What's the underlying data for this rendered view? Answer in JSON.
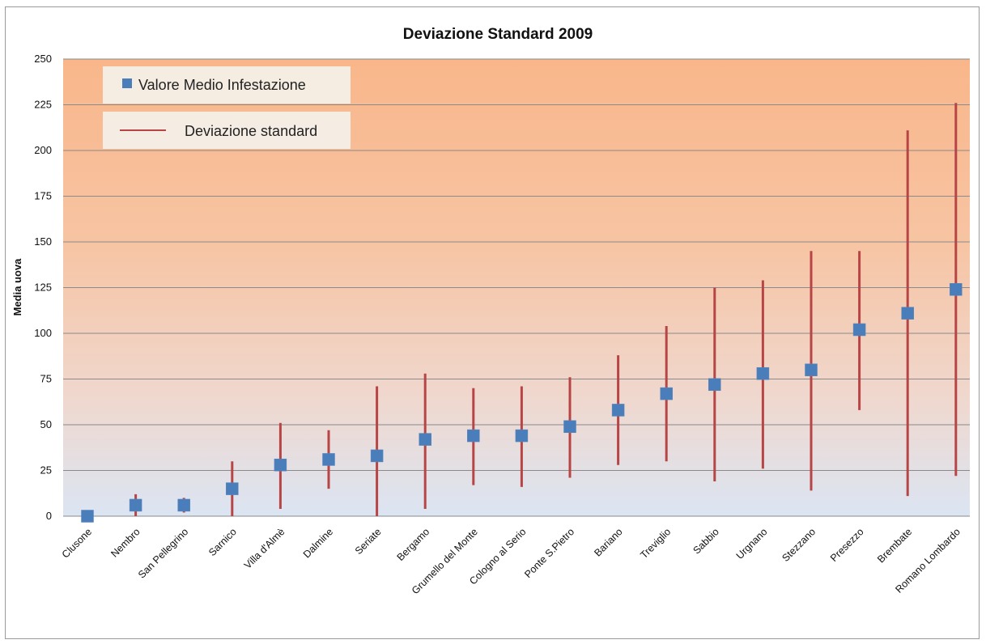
{
  "chart_data": {
    "type": "scatter",
    "title": "Deviazione Standard 2009",
    "xlabel": "",
    "ylabel": "Media uova",
    "ylim": [
      0,
      250
    ],
    "yticks": [
      0,
      25,
      50,
      75,
      100,
      125,
      150,
      175,
      200,
      225,
      250
    ],
    "grid": true,
    "legend_position": "top-left",
    "categories": [
      "Clusone",
      "Nembro",
      "San Pellegrino",
      "Sarnico",
      "Villa d'Almè",
      "Dalmine",
      "Seriate",
      "Bergamo",
      "Grumello del Monte",
      "Cologno al Serio",
      "Ponte S.Pietro",
      "Bariano",
      "Treviglio",
      "Sabbio",
      "Urgnano",
      "Stezzano",
      "Presezzo",
      "Brembate",
      "Romano Lombardo"
    ],
    "series": [
      {
        "name": "Valore Medio Infestazione",
        "color": "#4a7ebb",
        "values": [
          0,
          6,
          6,
          15,
          28,
          31,
          33,
          42,
          44,
          44,
          49,
          58,
          67,
          72,
          78,
          80,
          102,
          111,
          124
        ]
      },
      {
        "name": "Deviazione standard",
        "color": "#b84545",
        "low": [
          0,
          0,
          2,
          0,
          4,
          15,
          0,
          4,
          17,
          16,
          21,
          28,
          30,
          19,
          26,
          14,
          58,
          11,
          22
        ],
        "high": [
          0,
          12,
          10,
          30,
          51,
          47,
          71,
          78,
          70,
          71,
          76,
          88,
          104,
          125,
          129,
          145,
          145,
          211,
          226
        ]
      }
    ],
    "background_gradient": {
      "top": "#f9b68a",
      "bottom": "#dbe5f3"
    }
  }
}
